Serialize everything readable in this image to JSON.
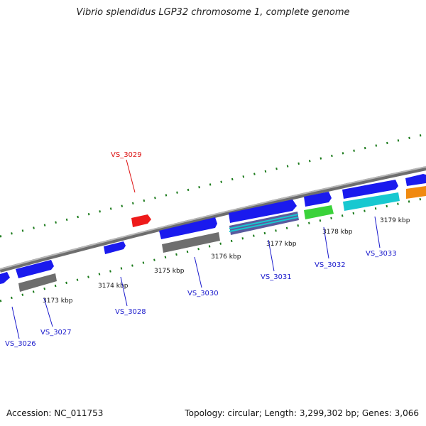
{
  "title": "Vibrio splendidus LGP32 chromosome 1, complete genome",
  "accession": "Accession: NC_011753",
  "topology": "Topology: circular; Length: 3,299,302 bp; Genes: 3,066",
  "colors": {
    "backbone": "#8c8c8c",
    "tick": "#1a7a1a",
    "gene_blue": "#1a1aee",
    "gene_red": "#ee1a1a",
    "gene_grey": "#6e6e6e",
    "gene_cyan": "#18c8d0",
    "gene_green": "#3ad23a",
    "gene_orange": "#f08a10",
    "label_blue": "#1a1acc",
    "label_red": "#dd1111"
  },
  "kbp_labels": [
    "3173 kbp",
    "3174 kbp",
    "3175 kbp",
    "3176 kbp",
    "3177 kbp",
    "3178 kbp",
    "3179 kbp"
  ],
  "genes": [
    {
      "name": "VS_3026",
      "color": "label_blue"
    },
    {
      "name": "VS_3027",
      "color": "label_blue"
    },
    {
      "name": "VS_3028",
      "color": "label_blue"
    },
    {
      "name": "VS_3029",
      "color": "label_red"
    },
    {
      "name": "VS_3030",
      "color": "label_blue"
    },
    {
      "name": "VS_3031",
      "color": "label_blue"
    },
    {
      "name": "VS_3032",
      "color": "label_blue"
    },
    {
      "name": "VS_3033",
      "color": "label_blue"
    }
  ]
}
